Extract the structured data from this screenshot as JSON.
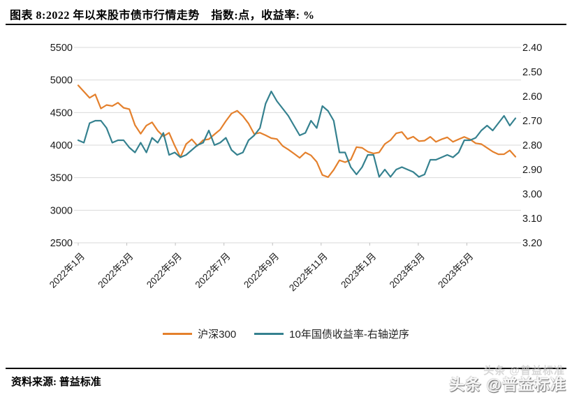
{
  "header": {
    "title": "图表 8:2022 年以来股市债市行情走势　指数:点，收益率: %"
  },
  "footer": {
    "source": "资料来源: 普益标准",
    "watermark": "头条 @普益标准"
  },
  "chart_data": {
    "type": "line",
    "title": "2022 年以来股市债市行情走势",
    "unit_note": "指数:点，收益率: %",
    "grid": true,
    "legend_position": "bottom",
    "x_tick_labels": [
      "2022年1月",
      "2022年3月",
      "2022年5月",
      "2022年7月",
      "2022年9月",
      "2022年11月",
      "2023年1月",
      "2023年3月",
      "2023年5月"
    ],
    "x_span_months": 18,
    "y_left": {
      "name": "指数:点",
      "ticks": [
        "5500",
        "5000",
        "4500",
        "4000",
        "3500",
        "3000",
        "2500"
      ],
      "range": [
        2500,
        5500
      ]
    },
    "y_right": {
      "name": "收益率: %",
      "ticks": [
        "2.40",
        "2.50",
        "2.60",
        "2.70",
        "2.80",
        "2.90",
        "3.00",
        "3.10",
        "3.20"
      ],
      "range": [
        2.4,
        3.2
      ],
      "inverted": true
    },
    "series": [
      {
        "name": "沪深300",
        "axis": "left",
        "color": "#E4802C",
        "values": [
          4917,
          4822,
          4726,
          4779,
          4563,
          4616,
          4601,
          4651,
          4573,
          4553,
          4306,
          4175,
          4301,
          4350,
          4222,
          4135,
          4190,
          3990,
          3814,
          4016,
          4089,
          3990,
          4077,
          4091,
          4166,
          4238,
          4370,
          4485,
          4528,
          4446,
          4331,
          4170,
          4191,
          4151,
          4107,
          4093,
          3987,
          3933,
          3870,
          3805,
          3887,
          3842,
          3743,
          3541,
          3508,
          3621,
          3767,
          3738,
          3775,
          3970,
          3958,
          3899,
          3872,
          3889,
          4017,
          4076,
          4181,
          4201,
          4093,
          4130,
          4061,
          4069,
          4128,
          4050,
          4090,
          4120,
          4050,
          4090,
          4126,
          4089,
          4029,
          4016,
          3958,
          3899,
          3860,
          3861,
          3920,
          3822
        ]
      },
      {
        "name": "10年国债收益率-右轴逆序",
        "axis": "right",
        "color": "#35818F",
        "values": [
          2.78,
          2.79,
          2.71,
          2.7,
          2.7,
          2.73,
          2.79,
          2.78,
          2.78,
          2.81,
          2.83,
          2.79,
          2.83,
          2.77,
          2.79,
          2.75,
          2.84,
          2.83,
          2.85,
          2.84,
          2.82,
          2.8,
          2.79,
          2.74,
          2.8,
          2.79,
          2.77,
          2.82,
          2.84,
          2.83,
          2.78,
          2.76,
          2.73,
          2.63,
          2.58,
          2.62,
          2.65,
          2.68,
          2.72,
          2.76,
          2.75,
          2.7,
          2.73,
          2.64,
          2.66,
          2.7,
          2.83,
          2.83,
          2.89,
          2.92,
          2.89,
          2.84,
          2.84,
          2.93,
          2.9,
          2.93,
          2.9,
          2.89,
          2.9,
          2.91,
          2.93,
          2.92,
          2.86,
          2.86,
          2.85,
          2.84,
          2.85,
          2.83,
          2.78,
          2.78,
          2.77,
          2.74,
          2.72,
          2.74,
          2.71,
          2.68,
          2.72,
          2.69
        ]
      }
    ],
    "colors": {
      "gridline": "#D9D9D9",
      "axis_tick": "#BFBFBF",
      "axis_text": "#1a1a1a"
    }
  }
}
